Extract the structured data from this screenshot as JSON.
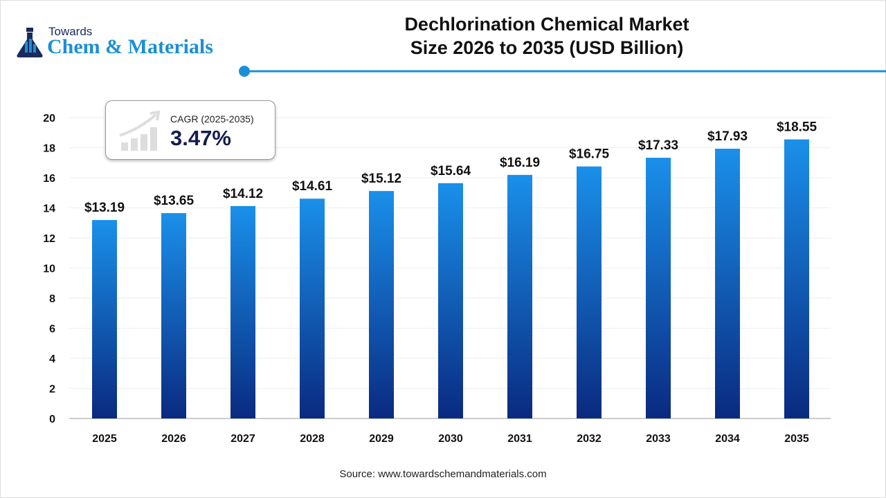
{
  "brand": {
    "logo_top": "Towards",
    "logo_main": "Chem & Materials"
  },
  "title_line1": "Dechlorination Chemical Market",
  "title_line2": "Size 2026 to 2035 (USD Billion)",
  "cagr": {
    "label": "CAGR (2025-2035)",
    "value": "3.47%"
  },
  "source": "Source: www.towardschemandmaterials.com",
  "colors": {
    "accent": "#1b8fd6",
    "bar_top": "#1a90ea",
    "bar_bottom": "#0a2a80",
    "cagr_text": "#141c4f"
  },
  "chart_data": {
    "type": "bar",
    "title": "Dechlorination Chemical Market Size 2026 to 2035 (USD Billion)",
    "categories": [
      "2025",
      "2026",
      "2027",
      "2028",
      "2029",
      "2030",
      "2031",
      "2032",
      "2033",
      "2034",
      "2035"
    ],
    "values": [
      13.19,
      13.65,
      14.12,
      14.61,
      15.12,
      15.64,
      16.19,
      16.75,
      17.33,
      17.93,
      18.55
    ],
    "data_labels": [
      "$13.19",
      "$13.65",
      "$14.12",
      "$14.61",
      "$15.12",
      "$15.64",
      "$16.19",
      "$16.75",
      "$17.33",
      "$17.93",
      "$18.55"
    ],
    "yticks": [
      0,
      2,
      4,
      6,
      8,
      10,
      12,
      14,
      16,
      18,
      20
    ],
    "ylim": [
      0,
      20
    ],
    "xlabel": "",
    "ylabel": "",
    "grid": true
  }
}
